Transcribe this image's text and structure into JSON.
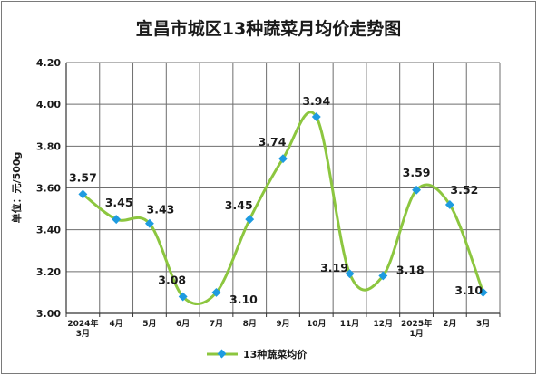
{
  "chart_data": {
    "type": "line",
    "title": "宜昌市城区13种蔬菜月均价走势图",
    "ylabel": "单位：元/500g",
    "xlabel": "",
    "ylim": [
      3.0,
      4.2
    ],
    "yticks": [
      "3.00",
      "3.20",
      "3.40",
      "3.60",
      "3.80",
      "4.00",
      "4.20"
    ],
    "categories": [
      [
        "2024年",
        "3月"
      ],
      [
        "4月"
      ],
      [
        "5月"
      ],
      [
        "6月"
      ],
      [
        "7月"
      ],
      [
        "8月"
      ],
      [
        "9月"
      ],
      [
        "10月"
      ],
      [
        "11月"
      ],
      [
        "12月"
      ],
      [
        "2025年",
        "1月"
      ],
      [
        "2月"
      ],
      [
        "3月"
      ]
    ],
    "series": [
      {
        "name": "13种蔬菜均价",
        "values": [
          3.57,
          3.45,
          3.43,
          3.08,
          3.1,
          3.45,
          3.74,
          3.94,
          3.19,
          3.18,
          3.59,
          3.52,
          3.1
        ],
        "labels": [
          "3.57",
          "3.45",
          "3.43",
          "3.08",
          "3.10",
          "3.45",
          "3.74",
          "3.94",
          "3.19",
          "3.18",
          "3.59",
          "3.52",
          "3.10"
        ]
      }
    ],
    "grid": true,
    "legend_position": "bottom",
    "colors": {
      "line": "#8cc63f",
      "marker": "#1e9be0",
      "grid": "#6e6e6e"
    }
  }
}
